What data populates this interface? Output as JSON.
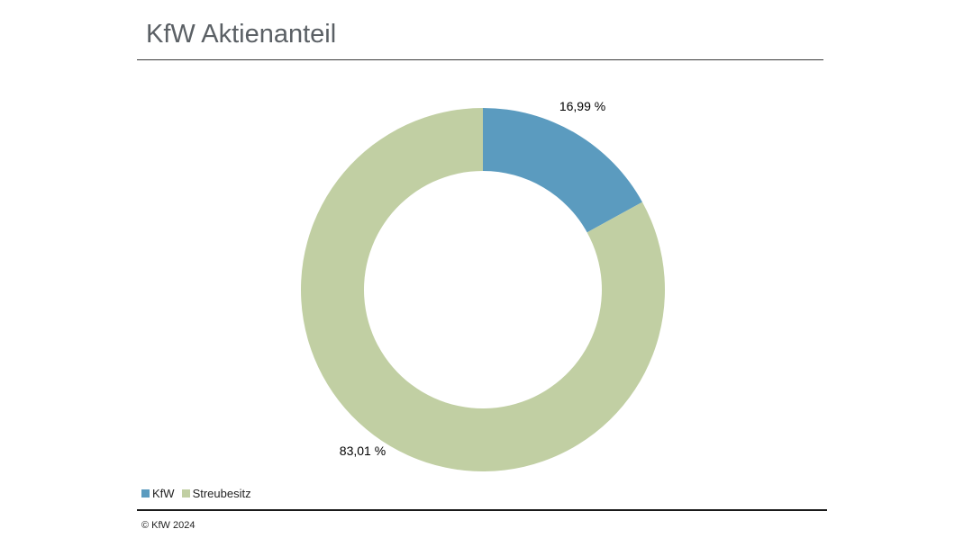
{
  "header": {
    "title": "KfW Aktienanteil"
  },
  "chart_data": {
    "type": "pie",
    "style": "donut",
    "title": "KfW Aktienanteil",
    "categories": [
      "KfW",
      "Streubesitz"
    ],
    "values": [
      16.99,
      83.01
    ],
    "data_labels": [
      "16,99 %",
      "83,01 %"
    ],
    "colors": [
      "#5b9bbf",
      "#c1cfa3"
    ],
    "legend": {
      "placement": "bottom-left",
      "entries": [
        "KfW",
        "Streubesitz"
      ]
    }
  },
  "footer": {
    "copyright": "© KfW 2024"
  }
}
